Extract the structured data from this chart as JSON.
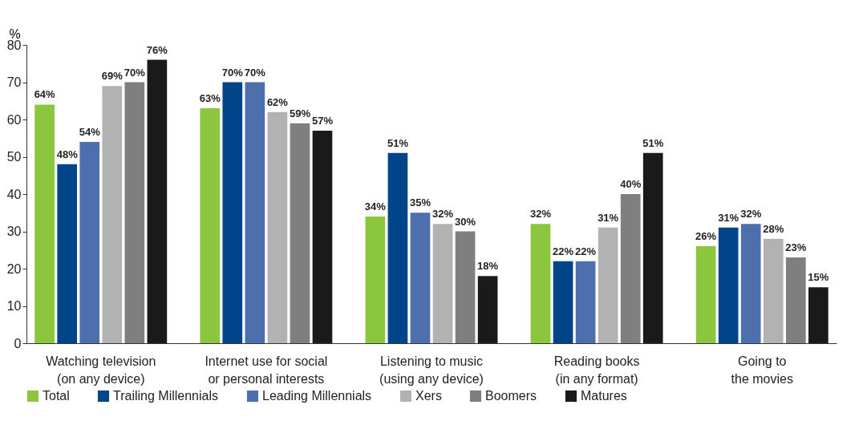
{
  "chart_data": {
    "type": "bar",
    "ylabel": "%",
    "categories": [
      "Watching television\n(on any device)",
      "Internet use for social\nor personal interests",
      "Listening to music\n(using any device)",
      "Reading books\n(in any format)",
      "Going to\nthe movies"
    ],
    "series": [
      {
        "name": "Total",
        "color": "#8cc63f",
        "values": [
          64,
          63,
          34,
          32,
          26
        ],
        "value_labels": [
          "64%",
          "63%",
          "34%",
          "32%",
          "26%"
        ]
      },
      {
        "name": "Trailing Millennials",
        "color": "#004589",
        "values": [
          48,
          70,
          51,
          22,
          31
        ],
        "value_labels": [
          "48%",
          "70%",
          "51%",
          "22%",
          "31%"
        ]
      },
      {
        "name": "Leading Millennials",
        "color": "#4e6fad",
        "values": [
          54,
          70,
          35,
          22,
          32
        ],
        "value_labels": [
          "54%",
          "70%",
          "35%",
          "22%",
          "32%"
        ]
      },
      {
        "name": "Xers",
        "color": "#b2b2b2",
        "values": [
          69,
          62,
          32,
          31,
          28
        ],
        "value_labels": [
          "69%",
          "62%",
          "32%",
          "31%",
          "28%"
        ]
      },
      {
        "name": "Boomers",
        "color": "#7f7f7f",
        "values": [
          70,
          59,
          30,
          40,
          23
        ],
        "value_labels": [
          "70%",
          "59%",
          "30%",
          "40%",
          "23%"
        ]
      },
      {
        "name": "Matures",
        "color": "#1a1a1a",
        "values": [
          76,
          57,
          18,
          51,
          15
        ],
        "value_labels": [
          "76%",
          "57%",
          "18%",
          "51%",
          "15%"
        ]
      }
    ],
    "ylim": [
      0,
      80
    ],
    "yticks": [
      0,
      10,
      20,
      30,
      40,
      50,
      60,
      70,
      80
    ],
    "grid": false,
    "legend": "bottom"
  }
}
